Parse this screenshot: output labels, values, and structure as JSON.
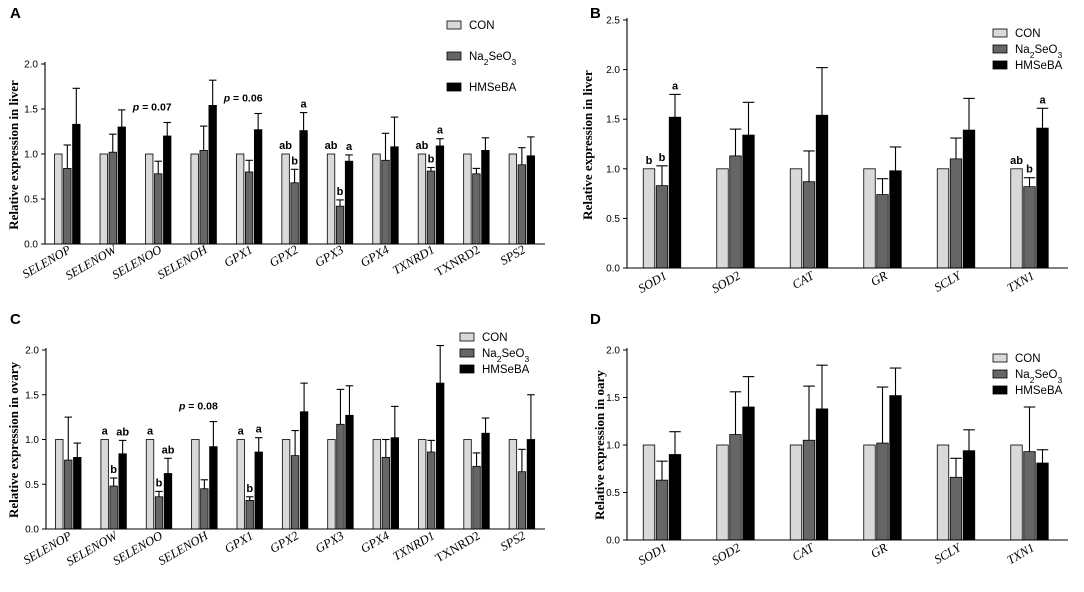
{
  "colors": {
    "CON": "#d9d9d9",
    "Na2SeO3": "#666666",
    "HMSeBA": "#000000"
  },
  "chart_data": [
    {
      "type": "bar",
      "panel": "A",
      "ylabel": "Relative expression in liver",
      "ylim": [
        0,
        2.0
      ],
      "yticks": [
        "0.0",
        "0.5",
        "1.0",
        "1.5",
        "2.0"
      ],
      "categories": [
        "SELENOP",
        "SELENOW",
        "SELENOO",
        "SELENOH",
        "GPX1",
        "GPX2",
        "GPX3",
        "GPX4",
        "TXNRD1",
        "TXNRD2",
        "SPS2"
      ],
      "upright_categories": [
        "TXNRD2"
      ],
      "series": [
        {
          "name": "CON",
          "values": [
            1.0,
            1.0,
            1.0,
            1.0,
            1.0,
            1.0,
            1.0,
            1.0,
            1.0,
            1.0,
            1.0
          ],
          "errors": [
            0,
            0,
            0,
            0,
            0,
            0,
            0,
            0,
            0,
            0,
            0
          ]
        },
        {
          "name": "Na2SeO3",
          "values": [
            0.84,
            1.02,
            0.78,
            1.04,
            0.8,
            0.68,
            0.42,
            0.93,
            0.81,
            0.78,
            0.88
          ],
          "errors": [
            0.26,
            0.2,
            0.14,
            0.27,
            0.13,
            0.15,
            0.07,
            0.3,
            0.04,
            0.06,
            0.19
          ]
        },
        {
          "name": "HMSeBA",
          "values": [
            1.33,
            1.3,
            1.2,
            1.54,
            1.27,
            1.26,
            0.92,
            1.08,
            1.09,
            1.04,
            0.98
          ],
          "errors": [
            0.4,
            0.19,
            0.15,
            0.28,
            0.18,
            0.2,
            0.07,
            0.33,
            0.08,
            0.14,
            0.21
          ]
        }
      ],
      "legend": {
        "entries": [
          "CON",
          "Na2SeO3",
          "HMSeBA"
        ],
        "position": "top-right"
      },
      "annotations": [
        {
          "text": "p = 0.07",
          "category": "SELENOO",
          "kind": "pvalue"
        },
        {
          "text": "p = 0.06",
          "category": "GPX1",
          "kind": "pvalue"
        },
        {
          "text": "ab",
          "category": "GPX2",
          "series": "CON"
        },
        {
          "text": "b",
          "category": "GPX2",
          "series": "Na2SeO3"
        },
        {
          "text": "a",
          "category": "GPX2",
          "series": "HMSeBA"
        },
        {
          "text": "ab",
          "category": "GPX3",
          "series": "CON"
        },
        {
          "text": "b",
          "category": "GPX3",
          "series": "Na2SeO3"
        },
        {
          "text": "a",
          "category": "GPX3",
          "series": "HMSeBA"
        },
        {
          "text": "ab",
          "category": "TXNRD1",
          "series": "CON"
        },
        {
          "text": "b",
          "category": "TXNRD1",
          "series": "Na2SeO3"
        },
        {
          "text": "a",
          "category": "TXNRD1",
          "series": "HMSeBA"
        }
      ]
    },
    {
      "type": "bar",
      "panel": "B",
      "ylabel": "Relative expression in liver",
      "ylim": [
        0,
        2.5
      ],
      "yticks": [
        "0.0",
        "0.5",
        "1.0",
        "1.5",
        "2.0",
        "2.5"
      ],
      "categories": [
        "SOD1",
        "SOD2",
        "CAT",
        "GR",
        "SCLY",
        "TXN1"
      ],
      "upright_categories": [],
      "series": [
        {
          "name": "CON",
          "values": [
            1.0,
            1.0,
            1.0,
            1.0,
            1.0,
            1.0
          ],
          "errors": [
            0,
            0,
            0,
            0,
            0,
            0
          ]
        },
        {
          "name": "Na2SeO3",
          "values": [
            0.83,
            1.13,
            0.87,
            0.74,
            1.1,
            0.82
          ],
          "errors": [
            0.2,
            0.27,
            0.31,
            0.16,
            0.21,
            0.09
          ]
        },
        {
          "name": "HMSeBA",
          "values": [
            1.52,
            1.34,
            1.54,
            0.98,
            1.39,
            1.41
          ],
          "errors": [
            0.23,
            0.33,
            0.48,
            0.24,
            0.32,
            0.2
          ]
        }
      ],
      "legend": {
        "entries": [
          "CON",
          "Na2SeO3",
          "HMSeBA"
        ],
        "position": "top-right"
      },
      "annotations": [
        {
          "text": "b",
          "category": "SOD1",
          "series": "CON"
        },
        {
          "text": "b",
          "category": "SOD1",
          "series": "Na2SeO3"
        },
        {
          "text": "a",
          "category": "SOD1",
          "series": "HMSeBA"
        },
        {
          "text": "ab",
          "category": "TXN1",
          "series": "CON"
        },
        {
          "text": "b",
          "category": "TXN1",
          "series": "Na2SeO3"
        },
        {
          "text": "a",
          "category": "TXN1",
          "series": "HMSeBA"
        }
      ]
    },
    {
      "type": "bar",
      "panel": "C",
      "ylabel": "Relative expression in ovary",
      "ylim": [
        0,
        2.0
      ],
      "yticks": [
        "0.0",
        "0.5",
        "1.0",
        "1.5",
        "2.0"
      ],
      "categories": [
        "SELENOP",
        "SELENOW",
        "SELENOO",
        "SELENOH",
        "GPX1",
        "GPX2",
        "GPX3",
        "GPX4",
        "TXNRD1",
        "TXNRD2",
        "SPS2"
      ],
      "upright_categories": [
        "TXNRD2"
      ],
      "series": [
        {
          "name": "CON",
          "values": [
            1.0,
            1.0,
            1.0,
            1.0,
            1.0,
            1.0,
            1.0,
            1.0,
            1.0,
            1.0,
            1.0
          ],
          "errors": [
            0,
            0,
            0,
            0,
            0,
            0,
            0,
            0,
            0,
            0,
            0
          ]
        },
        {
          "name": "Na2SeO3",
          "values": [
            0.77,
            0.48,
            0.36,
            0.45,
            0.32,
            0.82,
            1.17,
            0.8,
            0.86,
            0.7,
            0.64
          ],
          "errors": [
            0.48,
            0.09,
            0.06,
            0.1,
            0.04,
            0.28,
            0.39,
            0.2,
            0.13,
            0.15,
            0.25
          ]
        },
        {
          "name": "HMSeBA",
          "values": [
            0.8,
            0.84,
            0.62,
            0.92,
            0.86,
            1.31,
            1.27,
            1.02,
            1.63,
            1.07,
            1.0
          ],
          "errors": [
            0.16,
            0.15,
            0.17,
            0.28,
            0.16,
            0.32,
            0.33,
            0.35,
            0.42,
            0.17,
            0.5
          ]
        }
      ],
      "legend": {
        "entries": [
          "CON",
          "Na2SeO3",
          "HMSeBA"
        ],
        "position": "top-right"
      },
      "annotations": [
        {
          "text": "p = 0.08",
          "category": "SELENOH",
          "kind": "pvalue"
        },
        {
          "text": "a",
          "category": "SELENOW",
          "series": "CON"
        },
        {
          "text": "b",
          "category": "SELENOW",
          "series": "Na2SeO3"
        },
        {
          "text": "ab",
          "category": "SELENOW",
          "series": "HMSeBA"
        },
        {
          "text": "a",
          "category": "SELENOO",
          "series": "CON"
        },
        {
          "text": "b",
          "category": "SELENOO",
          "series": "Na2SeO3"
        },
        {
          "text": "ab",
          "category": "SELENOO",
          "series": "HMSeBA"
        },
        {
          "text": "a",
          "category": "GPX1",
          "series": "CON"
        },
        {
          "text": "b",
          "category": "GPX1",
          "series": "Na2SeO3"
        },
        {
          "text": "a",
          "category": "GPX1",
          "series": "HMSeBA"
        }
      ]
    },
    {
      "type": "bar",
      "panel": "D",
      "ylabel": "Relative expression in oary",
      "ylim": [
        0,
        2.0
      ],
      "yticks": [
        "0.0",
        "0.5",
        "1.0",
        "1.5",
        "2.0"
      ],
      "categories": [
        "SOD1",
        "SOD2",
        "CAT",
        "GR",
        "SCLY",
        "TXN1"
      ],
      "upright_categories": [],
      "series": [
        {
          "name": "CON",
          "values": [
            1.0,
            1.0,
            1.0,
            1.0,
            1.0,
            1.0
          ],
          "errors": [
            0,
            0,
            0,
            0,
            0,
            0
          ]
        },
        {
          "name": "Na2SeO3",
          "values": [
            0.63,
            1.11,
            1.05,
            1.02,
            0.66,
            0.93
          ],
          "errors": [
            0.2,
            0.45,
            0.57,
            0.59,
            0.2,
            0.47
          ]
        },
        {
          "name": "HMSeBA",
          "values": [
            0.9,
            1.4,
            1.38,
            1.52,
            0.94,
            0.81
          ],
          "errors": [
            0.24,
            0.32,
            0.46,
            0.29,
            0.22,
            0.14
          ]
        }
      ],
      "legend": {
        "entries": [
          "CON",
          "Na2SeO3",
          "HMSeBA"
        ],
        "position": "top-right"
      },
      "annotations": []
    }
  ]
}
